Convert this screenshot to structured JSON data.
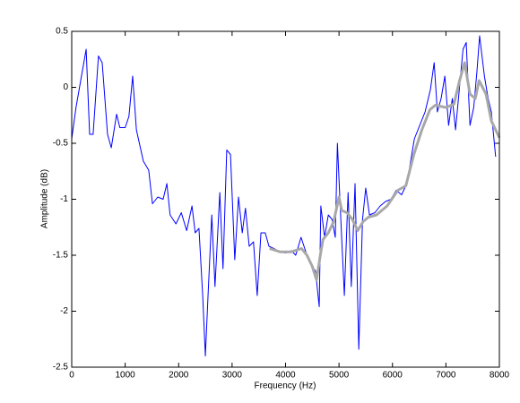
{
  "chart_data": {
    "type": "line",
    "xlabel": "Frequency (Hz)",
    "ylabel": "Amplitude (dB)",
    "xlim": [
      0,
      8000
    ],
    "xticks": [
      0,
      1000,
      2000,
      3000,
      4000,
      5000,
      6000,
      7000,
      8000
    ],
    "ylim": [
      -2.5,
      0.5
    ],
    "yticks": [
      -2.5,
      -2,
      -1.5,
      -1,
      -0.5,
      0,
      0.5
    ],
    "series": [
      {
        "color": "#0000ff",
        "width": 1,
        "x": [
          0,
          80,
          270,
          335,
          400,
          500,
          570,
          670,
          740,
          840,
          900,
          1000,
          1070,
          1140,
          1210,
          1340,
          1440,
          1510,
          1610,
          1710,
          1780,
          1840,
          1950,
          2050,
          2150,
          2250,
          2310,
          2380,
          2450,
          2500,
          2550,
          2620,
          2680,
          2770,
          2830,
          2900,
          2970,
          3050,
          3120,
          3190,
          3250,
          3320,
          3400,
          3470,
          3540,
          3620,
          3690,
          3780,
          3860,
          4000,
          4110,
          4190,
          4290,
          4400,
          4490,
          4560,
          4630,
          4660,
          4730,
          4800,
          4870,
          4930,
          4970,
          5030,
          5100,
          5170,
          5230,
          5300,
          5370,
          5440,
          5500,
          5570,
          5670,
          5770,
          5870,
          5970,
          6070,
          6170,
          6270,
          6340,
          6410,
          6510,
          6610,
          6710,
          6780,
          6840,
          6910,
          6980,
          7050,
          7120,
          7180,
          7250,
          7320,
          7380,
          7450,
          7520,
          7580,
          7630,
          7720,
          7790,
          7850,
          7930
        ],
        "values": [
          -0.46,
          -0.18,
          0.34,
          -0.42,
          -0.42,
          0.28,
          0.22,
          -0.42,
          -0.54,
          -0.24,
          -0.36,
          -0.36,
          -0.26,
          0.1,
          -0.38,
          -0.66,
          -0.74,
          -1.04,
          -0.98,
          -1.0,
          -0.86,
          -1.14,
          -1.22,
          -1.12,
          -1.28,
          -1.06,
          -1.3,
          -1.26,
          -1.86,
          -2.4,
          -1.86,
          -1.14,
          -1.78,
          -0.94,
          -1.62,
          -0.56,
          -0.6,
          -1.54,
          -0.98,
          -1.3,
          -1.08,
          -1.42,
          -1.38,
          -1.86,
          -1.3,
          -1.3,
          -1.42,
          -1.44,
          -1.46,
          -1.48,
          -1.46,
          -1.5,
          -1.34,
          -1.5,
          -1.6,
          -1.64,
          -1.96,
          -1.06,
          -1.34,
          -1.14,
          -1.18,
          -1.34,
          -0.5,
          -1.14,
          -1.86,
          -0.94,
          -1.78,
          -0.86,
          -2.34,
          -1.18,
          -0.9,
          -1.14,
          -1.12,
          -1.06,
          -1.02,
          -1.0,
          -0.92,
          -0.96,
          -0.86,
          -0.66,
          -0.46,
          -0.34,
          -0.22,
          -0.02,
          0.22,
          -0.22,
          -0.1,
          0.1,
          -0.34,
          -0.1,
          -0.38,
          -0.02,
          0.34,
          0.4,
          -0.34,
          -0.18,
          0.14,
          0.46,
          0.1,
          -0.1,
          -0.22,
          -0.62
        ]
      },
      {
        "color": "#a8a8a8",
        "width": 3,
        "x": [
          3700,
          3900,
          4100,
          4300,
          4400,
          4500,
          4580,
          4650,
          4700,
          4800,
          4900,
          5000,
          5050,
          5150,
          5250,
          5350,
          5450,
          5550,
          5700,
          5900,
          6100,
          6250,
          6400,
          6550,
          6700,
          6800,
          7000,
          7150,
          7250,
          7350,
          7450,
          7550,
          7620,
          7750,
          7850,
          8000
        ],
        "values": [
          -1.44,
          -1.47,
          -1.47,
          -1.44,
          -1.5,
          -1.6,
          -1.72,
          -1.5,
          -1.36,
          -1.3,
          -1.2,
          -0.98,
          -1.1,
          -1.12,
          -1.18,
          -1.28,
          -1.2,
          -1.16,
          -1.14,
          -1.06,
          -0.92,
          -0.88,
          -0.6,
          -0.38,
          -0.2,
          -0.16,
          -0.18,
          -0.15,
          0.05,
          0.22,
          -0.06,
          -0.1,
          0.06,
          -0.06,
          -0.3,
          -0.45
        ]
      }
    ]
  }
}
